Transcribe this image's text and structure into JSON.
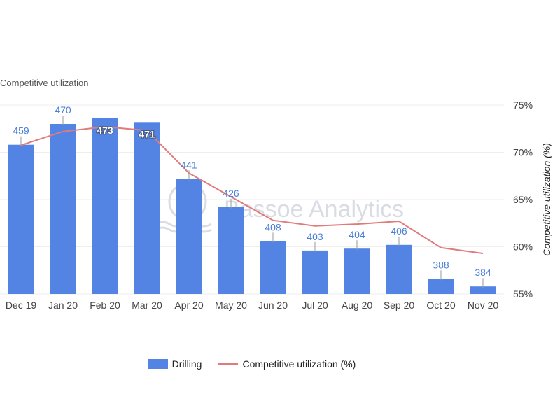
{
  "chart_data": {
    "type": "bar",
    "title": "Competitive utilization",
    "categories": [
      "Dec 19",
      "Jan 20",
      "Feb 20",
      "Mar 20",
      "Apr 20",
      "May 20",
      "Jun 20",
      "Jul 20",
      "Aug 20",
      "Sep 20",
      "Oct 20",
      "Nov 20"
    ],
    "series": [
      {
        "name": "Drilling",
        "type": "bar",
        "axis": "left",
        "color": "#5384e3",
        "values": [
          459,
          470,
          473,
          471,
          441,
          426,
          408,
          403,
          404,
          406,
          388,
          384
        ]
      },
      {
        "name": "Competitive utilization (%)",
        "type": "line",
        "axis": "right",
        "color": "#e07b7b",
        "values": [
          70.7,
          72.2,
          72.7,
          72.3,
          67.8,
          65.3,
          62.8,
          62.2,
          62.4,
          62.7,
          59.9,
          59.3
        ]
      }
    ],
    "y_left_range": [
      380,
      480
    ],
    "y_right_range": [
      55,
      75
    ],
    "y_right_ticks": [
      "75%",
      "70%",
      "65%",
      "60%",
      "55%"
    ],
    "ylabel_right": "Competitive utilization (%)",
    "legend_position": "bottom",
    "grid": true,
    "watermark": "Bassoe Analytics"
  }
}
